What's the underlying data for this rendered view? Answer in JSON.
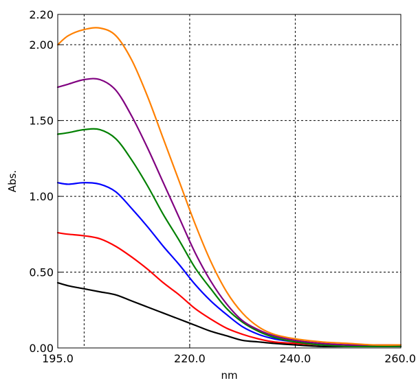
{
  "chart_data": {
    "type": "line",
    "xlabel": "nm",
    "ylabel": "Abs.",
    "xlim": [
      195.0,
      260.0
    ],
    "ylim": [
      0.0,
      2.2
    ],
    "xticks": [
      195.0,
      220.0,
      240.0,
      260.0
    ],
    "xtick_labels": [
      "195.0",
      "220.0",
      "240.0",
      "260.0"
    ],
    "x_gridlines": [
      200.0,
      220.0,
      240.0
    ],
    "yticks": [
      0.0,
      0.5,
      1.0,
      1.5,
      2.0,
      2.2
    ],
    "ytick_labels": [
      "0.00",
      "0.50",
      "1.00",
      "1.50",
      "2.00",
      "2.20"
    ],
    "y_gridlines": [
      0.5,
      1.0,
      1.5,
      2.0
    ],
    "grid": true,
    "series": [
      {
        "color": "#000000",
        "x": [
          195,
          197,
          200,
          203,
          206,
          209,
          212,
          215,
          218,
          221,
          224,
          227,
          230,
          233,
          236,
          240,
          245,
          250,
          255,
          260
        ],
        "values": [
          0.43,
          0.41,
          0.39,
          0.37,
          0.35,
          0.31,
          0.27,
          0.23,
          0.19,
          0.15,
          0.11,
          0.08,
          0.05,
          0.04,
          0.03,
          0.02,
          0.01,
          0.01,
          0.01,
          0.01
        ]
      },
      {
        "color": "#ff0000",
        "x": [
          195,
          197,
          200,
          203,
          206,
          209,
          212,
          215,
          218,
          221,
          224,
          227,
          230,
          233,
          236,
          240,
          245,
          250,
          255,
          260
        ],
        "values": [
          0.76,
          0.75,
          0.74,
          0.72,
          0.67,
          0.6,
          0.52,
          0.43,
          0.35,
          0.26,
          0.19,
          0.13,
          0.09,
          0.06,
          0.04,
          0.03,
          0.02,
          0.01,
          0.01,
          0.01
        ]
      },
      {
        "color": "#0000ff",
        "x": [
          195,
          197,
          200,
          203,
          206,
          209,
          212,
          215,
          218,
          221,
          224,
          227,
          230,
          233,
          236,
          240,
          245,
          250,
          255,
          260
        ],
        "values": [
          1.09,
          1.08,
          1.09,
          1.08,
          1.03,
          0.92,
          0.8,
          0.67,
          0.55,
          0.42,
          0.31,
          0.22,
          0.14,
          0.09,
          0.06,
          0.04,
          0.02,
          0.01,
          0.01,
          0.01
        ]
      },
      {
        "color": "#008000",
        "x": [
          195,
          197,
          200,
          203,
          206,
          209,
          212,
          215,
          218,
          221,
          224,
          227,
          230,
          233,
          236,
          240,
          245,
          250,
          255,
          260
        ],
        "values": [
          1.41,
          1.42,
          1.44,
          1.44,
          1.38,
          1.24,
          1.07,
          0.88,
          0.71,
          0.53,
          0.39,
          0.26,
          0.17,
          0.11,
          0.07,
          0.04,
          0.02,
          0.01,
          0.01,
          0.01
        ]
      },
      {
        "color": "#800080",
        "x": [
          195,
          197,
          200,
          203,
          206,
          209,
          212,
          215,
          218,
          221,
          224,
          227,
          230,
          233,
          236,
          240,
          245,
          250,
          255,
          260
        ],
        "values": [
          1.72,
          1.74,
          1.77,
          1.77,
          1.7,
          1.53,
          1.32,
          1.09,
          0.86,
          0.63,
          0.44,
          0.29,
          0.18,
          0.12,
          0.08,
          0.05,
          0.03,
          0.02,
          0.02,
          0.02
        ]
      },
      {
        "color": "#ff8000",
        "x": [
          195,
          197,
          200,
          203,
          206,
          209,
          212,
          215,
          218,
          221,
          224,
          227,
          230,
          233,
          236,
          240,
          245,
          250,
          255,
          260
        ],
        "values": [
          2.0,
          2.06,
          2.1,
          2.11,
          2.06,
          1.9,
          1.66,
          1.38,
          1.1,
          0.82,
          0.57,
          0.37,
          0.23,
          0.14,
          0.09,
          0.06,
          0.04,
          0.03,
          0.02,
          0.02
        ]
      }
    ]
  }
}
